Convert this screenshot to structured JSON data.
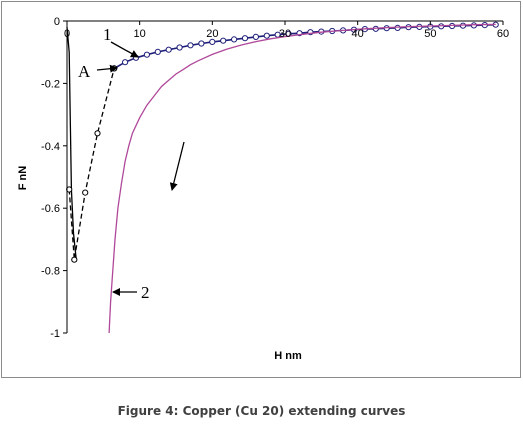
{
  "caption": "Figure 4: Copper (Cu 20) extending curves",
  "chart_data": {
    "type": "line",
    "title": "",
    "xlabel": "H nm",
    "ylabel": "F nN",
    "xlim": [
      0,
      60
    ],
    "ylim": [
      -1,
      0
    ],
    "x_ticks": [
      "0",
      "10",
      "20",
      "30",
      "40",
      "50",
      "60"
    ],
    "y_ticks": [
      "0",
      "-0.2",
      "-0.4",
      "-0.6",
      "-0.8",
      "-1"
    ],
    "grid": false,
    "legend": "none",
    "series": [
      {
        "color": "#1f1f7a",
        "style": "solid-line-with-markers",
        "x": [
          6.5,
          8,
          9.5,
          11,
          12.5,
          14,
          15.5,
          17,
          18.5,
          20,
          21.5,
          23,
          24.5,
          26,
          27.5,
          29,
          30.5,
          32,
          33.5,
          35,
          36.5,
          38,
          39.5,
          41,
          42.5,
          44,
          45.5,
          47,
          48.5,
          50,
          51.5,
          53,
          54.5,
          56,
          57.5,
          59
        ],
        "y": [
          -0.152,
          -0.132,
          -0.118,
          -0.108,
          -0.099,
          -0.092,
          -0.085,
          -0.078,
          -0.072,
          -0.067,
          -0.063,
          -0.059,
          -0.055,
          -0.051,
          -0.047,
          -0.044,
          -0.041,
          -0.039,
          -0.036,
          -0.034,
          -0.032,
          -0.03,
          -0.028,
          -0.026,
          -0.025,
          -0.023,
          -0.022,
          -0.02,
          -0.019,
          -0.018,
          -0.017,
          -0.016,
          -0.015,
          -0.014,
          -0.013,
          -0.012
        ]
      },
      {
        "color": "#000000",
        "style": "solid-line",
        "x": [
          0,
          0.3,
          0.6,
          0.9,
          1.3
        ],
        "y": [
          -0.02,
          -0.1,
          -0.54,
          -0.68,
          -0.77
        ]
      },
      {
        "color": "#000000",
        "style": "dashed-line-with-markers",
        "x": [
          0.3,
          1.0,
          2.5,
          4.2,
          6.5
        ],
        "y": [
          -0.54,
          -0.765,
          -0.55,
          -0.36,
          -0.152
        ]
      },
      {
        "color": "#b0489a",
        "style": "solid-line",
        "x": [
          5.8,
          6.0,
          6.3,
          6.6,
          7.0,
          7.5,
          8.0,
          8.5,
          9.0,
          10,
          11,
          12,
          13,
          14,
          15,
          16,
          17,
          18,
          20,
          22,
          24,
          26,
          28,
          30,
          32,
          35,
          38,
          41,
          44,
          47,
          50,
          53,
          56,
          59
        ],
        "y": [
          -1.0,
          -0.9,
          -0.8,
          -0.7,
          -0.6,
          -0.52,
          -0.45,
          -0.4,
          -0.36,
          -0.31,
          -0.27,
          -0.24,
          -0.21,
          -0.19,
          -0.17,
          -0.155,
          -0.14,
          -0.128,
          -0.107,
          -0.09,
          -0.077,
          -0.066,
          -0.057,
          -0.05,
          -0.044,
          -0.036,
          -0.03,
          -0.025,
          -0.021,
          -0.018,
          -0.016,
          -0.014,
          -0.012,
          -0.011
        ]
      }
    ],
    "annotations": [
      {
        "text": "1",
        "x": 5.5,
        "y": -0.04
      },
      {
        "text": "A",
        "x": 2,
        "y": -0.175
      },
      {
        "text": "2",
        "x": 10.5,
        "y": -0.85
      }
    ]
  }
}
